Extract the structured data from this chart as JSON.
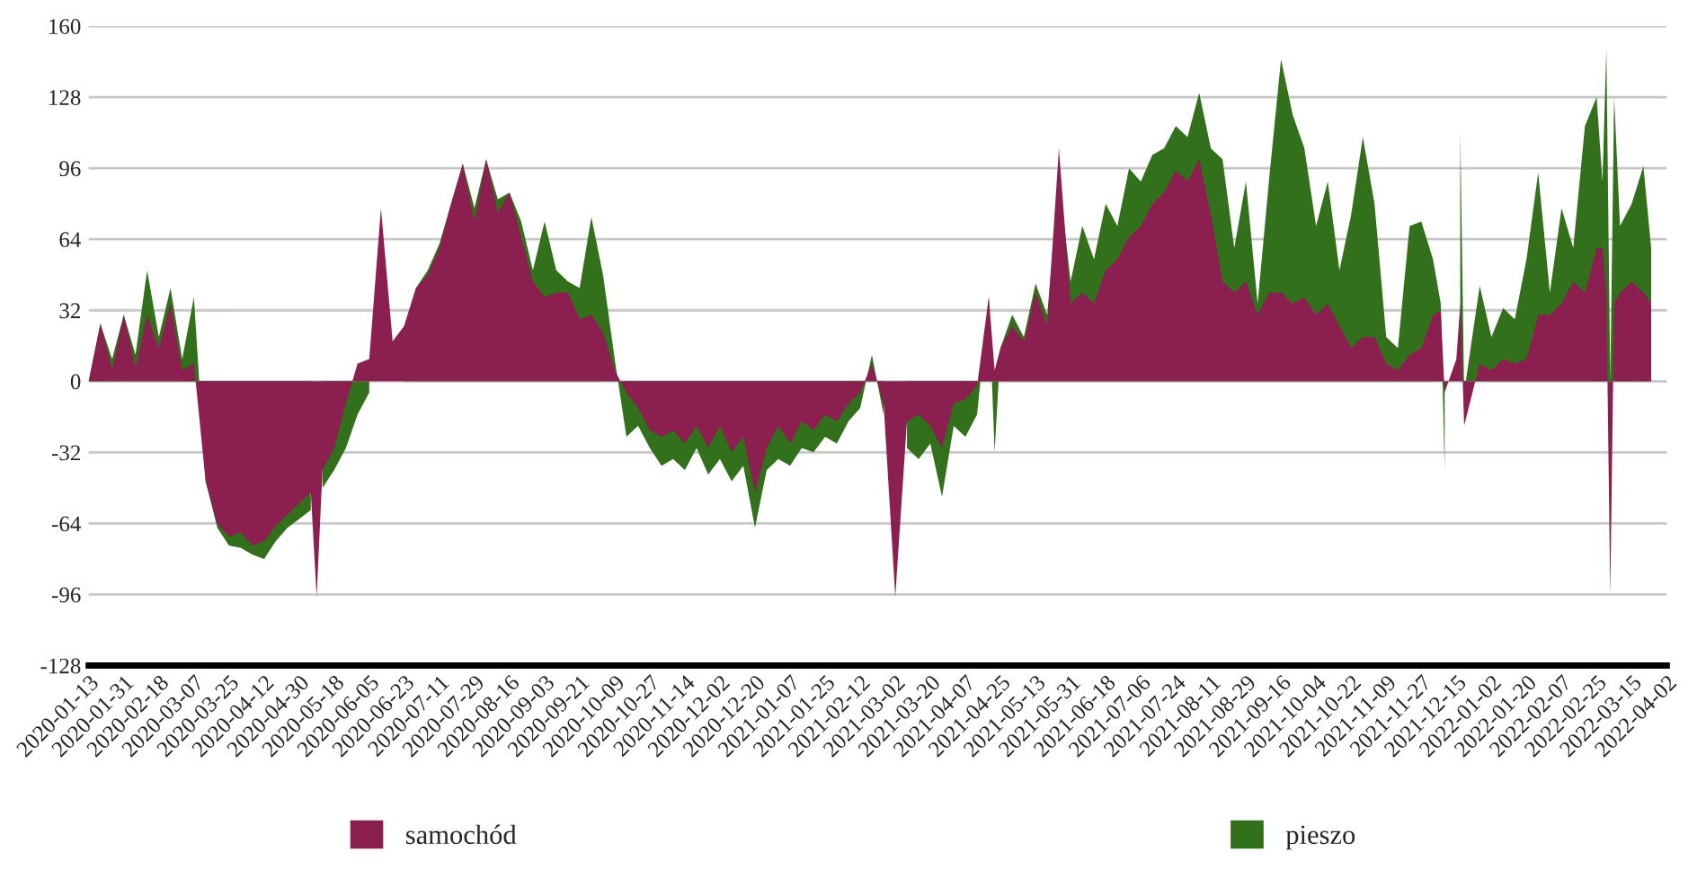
{
  "chart_data": {
    "type": "area",
    "ylim": [
      -128,
      160
    ],
    "yticks": [
      -128,
      -96,
      -64,
      -32,
      0,
      32,
      64,
      96,
      128,
      160
    ],
    "xlim": [
      "2020-01-13",
      "2022-04-02"
    ],
    "xticks": [
      "2020-01-13",
      "2020-01-31",
      "2020-02-18",
      "2020-03-07",
      "2020-03-25",
      "2020-04-12",
      "2020-04-30",
      "2020-05-18",
      "2020-06-05",
      "2020-06-23",
      "2020-07-11",
      "2020-07-29",
      "2020-08-16",
      "2020-09-03",
      "2020-09-21",
      "2020-10-09",
      "2020-10-27",
      "2020-11-14",
      "2020-12-02",
      "2020-12-20",
      "2021-01-07",
      "2021-01-25",
      "2021-02-12",
      "2021-03-02",
      "2021-03-20",
      "2021-04-07",
      "2021-04-25",
      "2021-05-13",
      "2021-05-31",
      "2021-06-18",
      "2021-07-06",
      "2021-07-24",
      "2021-08-11",
      "2021-08-29",
      "2021-09-16",
      "2021-10-04",
      "2021-10-22",
      "2021-11-09",
      "2021-11-27",
      "2021-12-15",
      "2022-01-02",
      "2022-01-20",
      "2022-02-07",
      "2022-02-25",
      "2022-03-15",
      "2022-04-02"
    ],
    "x": [
      "2020-01-13",
      "2020-01-19",
      "2020-01-25",
      "2020-01-31",
      "2020-02-06",
      "2020-02-12",
      "2020-02-18",
      "2020-02-24",
      "2020-03-01",
      "2020-03-07",
      "2020-03-13",
      "2020-03-19",
      "2020-03-25",
      "2020-03-31",
      "2020-04-06",
      "2020-04-12",
      "2020-04-18",
      "2020-04-24",
      "2020-04-30",
      "2020-05-06",
      "2020-05-09",
      "2020-05-12",
      "2020-05-18",
      "2020-05-24",
      "2020-05-30",
      "2020-06-05",
      "2020-06-11",
      "2020-06-17",
      "2020-06-23",
      "2020-06-29",
      "2020-07-05",
      "2020-07-11",
      "2020-07-17",
      "2020-07-23",
      "2020-07-29",
      "2020-08-04",
      "2020-08-10",
      "2020-08-16",
      "2020-08-22",
      "2020-08-28",
      "2020-09-03",
      "2020-09-09",
      "2020-09-15",
      "2020-09-21",
      "2020-09-27",
      "2020-10-03",
      "2020-10-09",
      "2020-10-15",
      "2020-10-21",
      "2020-10-27",
      "2020-11-02",
      "2020-11-08",
      "2020-11-14",
      "2020-11-20",
      "2020-11-26",
      "2020-12-02",
      "2020-12-08",
      "2020-12-14",
      "2020-12-20",
      "2020-12-26",
      "2021-01-01",
      "2021-01-07",
      "2021-01-13",
      "2021-01-19",
      "2021-01-25",
      "2021-01-31",
      "2021-02-06",
      "2021-02-12",
      "2021-02-18",
      "2021-02-24",
      "2021-03-02",
      "2021-03-08",
      "2021-03-14",
      "2021-03-20",
      "2021-03-26",
      "2021-04-01",
      "2021-04-07",
      "2021-04-13",
      "2021-04-19",
      "2021-04-22",
      "2021-04-25",
      "2021-05-01",
      "2021-05-07",
      "2021-05-13",
      "2021-05-19",
      "2021-05-25",
      "2021-05-31",
      "2021-06-06",
      "2021-06-12",
      "2021-06-18",
      "2021-06-24",
      "2021-06-30",
      "2021-07-06",
      "2021-07-12",
      "2021-07-18",
      "2021-07-24",
      "2021-07-30",
      "2021-08-05",
      "2021-08-11",
      "2021-08-17",
      "2021-08-23",
      "2021-08-29",
      "2021-09-04",
      "2021-09-10",
      "2021-09-16",
      "2021-09-22",
      "2021-09-28",
      "2021-10-04",
      "2021-10-10",
      "2021-10-16",
      "2021-10-22",
      "2021-10-28",
      "2021-11-03",
      "2021-11-09",
      "2021-11-15",
      "2021-11-21",
      "2021-11-27",
      "2021-12-03",
      "2021-12-07",
      "2021-12-09",
      "2021-12-15",
      "2021-12-17",
      "2021-12-19",
      "2021-12-27",
      "2022-01-02",
      "2022-01-08",
      "2022-01-14",
      "2022-01-20",
      "2022-01-26",
      "2022-02-01",
      "2022-02-07",
      "2022-02-13",
      "2022-02-19",
      "2022-02-25",
      "2022-02-28",
      "2022-03-02",
      "2022-03-04",
      "2022-03-06",
      "2022-03-09",
      "2022-03-15",
      "2022-03-21",
      "2022-03-25"
    ],
    "series": [
      {
        "name": "samochód",
        "color": "#8b1f4f",
        "values": [
          0,
          26,
          5,
          30,
          6,
          30,
          15,
          35,
          5,
          8,
          -45,
          -64,
          -70,
          -68,
          -74,
          -72,
          -65,
          -60,
          -55,
          -50,
          -97,
          -40,
          -30,
          -10,
          8,
          10,
          78,
          18,
          25,
          42,
          48,
          60,
          80,
          98,
          72,
          100,
          76,
          85,
          65,
          45,
          38,
          40,
          40,
          28,
          30,
          22,
          5,
          -5,
          -12,
          -22,
          -25,
          -22,
          -28,
          -20,
          -30,
          -20,
          -32,
          -25,
          -50,
          -30,
          -20,
          -28,
          -18,
          -22,
          -15,
          -18,
          -10,
          -5,
          8,
          -10,
          -97,
          -18,
          -15,
          -20,
          -30,
          -10,
          -8,
          -2,
          38,
          5,
          15,
          25,
          18,
          40,
          25,
          105,
          35,
          40,
          35,
          50,
          55,
          65,
          70,
          80,
          85,
          95,
          90,
          100,
          75,
          45,
          40,
          45,
          30,
          40,
          40,
          35,
          38,
          30,
          35,
          25,
          15,
          20,
          20,
          8,
          5,
          12,
          15,
          30,
          32,
          -5,
          10,
          35,
          -20,
          8,
          5,
          10,
          8,
          10,
          30,
          30,
          35,
          45,
          40,
          60,
          60,
          40,
          -97,
          35,
          40,
          45,
          40,
          35
        ]
      },
      {
        "name": "pieszo",
        "color": "#33701c",
        "values": [
          0,
          26,
          10,
          30,
          12,
          50,
          20,
          42,
          10,
          38,
          -45,
          -66,
          -74,
          -75,
          -78,
          -80,
          -72,
          -66,
          -62,
          -58,
          null,
          -48,
          -40,
          -30,
          -15,
          -5,
          null,
          null,
          25,
          42,
          50,
          62,
          80,
          98,
          78,
          100,
          82,
          85,
          72,
          50,
          72,
          50,
          45,
          42,
          74,
          48,
          10,
          -25,
          -20,
          -30,
          -38,
          -35,
          -40,
          -30,
          -42,
          -35,
          -45,
          -38,
          -66,
          -40,
          -35,
          -38,
          -30,
          -32,
          -25,
          -28,
          -18,
          -12,
          12,
          -15,
          null,
          -30,
          -35,
          -28,
          -52,
          -20,
          -25,
          -15,
          38,
          -32,
          15,
          30,
          20,
          44,
          30,
          92,
          45,
          70,
          55,
          80,
          70,
          96,
          90,
          102,
          105,
          115,
          110,
          130,
          105,
          100,
          60,
          90,
          35,
          92,
          145,
          120,
          105,
          70,
          90,
          50,
          75,
          110,
          80,
          20,
          15,
          70,
          72,
          55,
          35,
          -40,
          null,
          113,
          -5,
          43,
          20,
          33,
          28,
          55,
          94,
          40,
          78,
          60,
          115,
          128,
          90,
          150,
          0,
          128,
          70,
          80,
          97,
          60
        ]
      }
    ],
    "grid": "y",
    "legend": "bottom"
  }
}
